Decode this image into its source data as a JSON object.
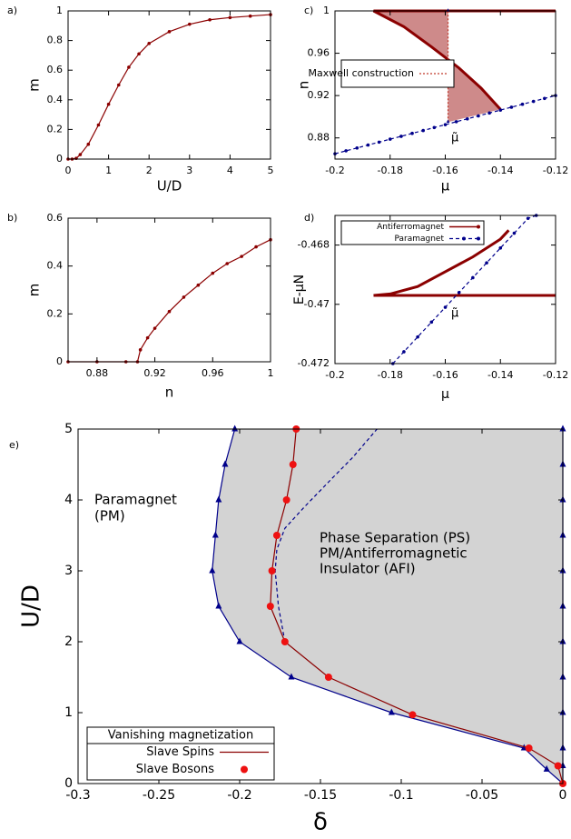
{
  "chart_data": [
    {
      "type": "line",
      "panel": "a)",
      "xlabel": "U/D",
      "ylabel": "m",
      "xlim": [
        0,
        5
      ],
      "ylim": [
        0,
        1
      ],
      "xticks": [
        0,
        1,
        2,
        3,
        4,
        5
      ],
      "yticks": [
        0,
        0.2,
        0.4,
        0.6,
        0.8,
        1
      ],
      "series": [
        {
          "color": "#8b0000",
          "line": "solid",
          "marker": "circle",
          "x": [
            0,
            0.1,
            0.2,
            0.3,
            0.5,
            0.75,
            1,
            1.25,
            1.5,
            1.75,
            2,
            2.5,
            3,
            3.5,
            4,
            4.5,
            5
          ],
          "values": [
            0,
            0,
            0.005,
            0.03,
            0.1,
            0.23,
            0.37,
            0.5,
            0.62,
            0.71,
            0.78,
            0.86,
            0.91,
            0.94,
            0.955,
            0.965,
            0.975
          ]
        }
      ]
    },
    {
      "type": "line",
      "panel": "b)",
      "xlabel": "n",
      "ylabel": "m",
      "xlim": [
        0.86,
        1
      ],
      "ylim": [
        0,
        0.6
      ],
      "xticks": [
        0.88,
        0.92,
        0.96,
        1
      ],
      "yticks": [
        0,
        0.2,
        0.4,
        0.6
      ],
      "series": [
        {
          "color": "#8b0000",
          "line": "solid",
          "marker": "circle",
          "x": [
            0.86,
            0.88,
            0.9,
            0.908,
            0.91,
            0.915,
            0.92,
            0.93,
            0.94,
            0.95,
            0.96,
            0.97,
            0.98,
            0.99,
            1
          ],
          "values": [
            0,
            0,
            0,
            0,
            0.05,
            0.1,
            0.14,
            0.21,
            0.27,
            0.32,
            0.37,
            0.41,
            0.44,
            0.48,
            0.51
          ]
        }
      ]
    },
    {
      "type": "line",
      "panel": "c)",
      "xlabel": "μ",
      "ylabel": "n",
      "xlim": [
        -0.2,
        -0.12
      ],
      "ylim": [
        0.86,
        1
      ],
      "xticks": [
        -0.2,
        -0.18,
        -0.16,
        -0.14,
        -0.12
      ],
      "yticks": [
        0.88,
        0.92,
        0.96,
        1
      ],
      "annotations": [
        "μ̃"
      ],
      "series": [
        {
          "color": "#8b0000",
          "line": "solid",
          "width": 3,
          "x": [
            -0.12,
            -0.186,
            -0.175,
            -0.165,
            -0.155,
            -0.147,
            -0.14
          ],
          "values": [
            1,
            1,
            0.985,
            0.966,
            0.946,
            0.927,
            0.907
          ]
        },
        {
          "color": "#00008b",
          "line": "dashed",
          "marker": "circle",
          "x": [
            -0.2,
            -0.196,
            -0.192,
            -0.188,
            -0.184,
            -0.18,
            -0.176,
            -0.172,
            -0.168,
            -0.164,
            -0.16,
            -0.156,
            -0.152,
            -0.148,
            -0.144,
            -0.14,
            -0.136,
            -0.132,
            -0.128,
            -0.124,
            -0.12
          ],
          "values": [
            0.865,
            0.8678,
            0.8705,
            0.8733,
            0.876,
            0.8788,
            0.8815,
            0.8843,
            0.887,
            0.8898,
            0.8925,
            0.8953,
            0.898,
            0.9008,
            0.9035,
            0.9063,
            0.909,
            0.9118,
            0.9145,
            0.9173,
            0.92
          ]
        },
        {
          "name": "Maxwell construction",
          "color": "#c0392b",
          "line": "dotted",
          "marker": "triangle",
          "markercolor": "#00008b",
          "x": [
            -0.159,
            -0.159
          ],
          "values": [
            0.895,
            1
          ]
        }
      ]
    },
    {
      "type": "line",
      "panel": "d)",
      "xlabel": "μ",
      "ylabel": "E-μN",
      "xlim": [
        -0.2,
        -0.12
      ],
      "ylim": [
        -0.472,
        -0.467
      ],
      "xticks": [
        -0.2,
        -0.18,
        -0.16,
        -0.14,
        -0.12
      ],
      "yticks": [
        -0.472,
        -0.47,
        -0.468
      ],
      "annotations": [
        "μ̃"
      ],
      "series": [
        {
          "name": "Antiferromagnet",
          "color": "#8b0000",
          "line": "solid",
          "width": 3,
          "x": [
            -0.12,
            -0.186,
            -0.18,
            -0.17,
            -0.16,
            -0.15,
            -0.14,
            -0.137
          ],
          "values": [
            -0.4697,
            -0.4697,
            -0.46965,
            -0.4694,
            -0.4689,
            -0.4684,
            -0.4678,
            -0.4675
          ]
        },
        {
          "name": "Paramagnet",
          "color": "#00008b",
          "line": "dashed",
          "marker": "circle",
          "x": [
            -0.179,
            -0.175,
            -0.17,
            -0.165,
            -0.16,
            -0.155,
            -0.15,
            -0.145,
            -0.14,
            -0.135,
            -0.13,
            -0.127
          ],
          "values": [
            -0.472,
            -0.4716,
            -0.4711,
            -0.4706,
            -0.4701,
            -0.4696,
            -0.4691,
            -0.4686,
            -0.4681,
            -0.4676,
            -0.4671,
            -0.467
          ]
        }
      ]
    },
    {
      "type": "line",
      "panel": "e)",
      "xlabel": "δ",
      "ylabel": "U/D",
      "xlim": [
        -0.3,
        0
      ],
      "ylim": [
        0,
        5
      ],
      "xticks": [
        -0.3,
        -0.25,
        -0.2,
        -0.15,
        -0.1,
        -0.05,
        0
      ],
      "yticks": [
        0,
        1,
        2,
        3,
        4,
        5
      ],
      "annotations": [
        "Paramagnet",
        "(PM)",
        "Phase Separation (PS)",
        "PM/Antiferromagnetic",
        "Insulator (AFI)"
      ],
      "legend_title": "Vanishing magnetization",
      "series": [
        {
          "color": "#00008b",
          "line": "solid",
          "marker": "triangle",
          "fill": "#d3d3d3",
          "x": [
            -0.203,
            -0.209,
            -0.213,
            -0.215,
            -0.217,
            -0.213,
            -0.2,
            -0.168,
            -0.106,
            -0.024,
            -0.01,
            0
          ],
          "values": [
            5,
            4.5,
            4,
            3.5,
            3,
            2.5,
            2,
            1.5,
            1,
            0.5,
            0.2,
            0
          ]
        },
        {
          "color": "#00008b",
          "line": "solid",
          "marker": "triangle",
          "x": [
            0,
            0,
            0,
            0,
            0,
            0,
            0,
            0,
            0,
            0,
            0,
            0
          ],
          "values": [
            0,
            0.25,
            0.5,
            1,
            1.5,
            2,
            2.5,
            3,
            3.5,
            4,
            4.5,
            5
          ]
        },
        {
          "color": "#00008b",
          "line": "dashed",
          "x": [
            -0.172,
            -0.176,
            -0.178,
            -0.177,
            -0.172,
            -0.16,
            -0.143,
            -0.13,
            -0.115
          ],
          "values": [
            2,
            2.5,
            3,
            3.3,
            3.6,
            3.9,
            4.3,
            4.6,
            5
          ]
        },
        {
          "name": "Slave Spins",
          "color": "#8b0000",
          "line": "solid",
          "x": [
            -0.165,
            -0.167,
            -0.171,
            -0.177,
            -0.18,
            -0.181,
            -0.172,
            -0.145,
            -0.093,
            -0.021,
            -0.003,
            0
          ],
          "values": [
            5,
            4.5,
            4,
            3.5,
            3,
            2.5,
            2,
            1.5,
            0.97,
            0.5,
            0.25,
            0
          ]
        },
        {
          "name": "Slave Bosons",
          "color": "#ee1111",
          "line": "none",
          "marker": "circle",
          "size": 4,
          "x": [
            -0.165,
            -0.167,
            -0.171,
            -0.177,
            -0.18,
            -0.181,
            -0.172,
            -0.145,
            -0.093,
            -0.021,
            -0.003,
            0
          ],
          "values": [
            5,
            4.5,
            4,
            3.5,
            3,
            2.5,
            2,
            1.5,
            0.97,
            0.5,
            0.25,
            0
          ]
        }
      ]
    }
  ]
}
